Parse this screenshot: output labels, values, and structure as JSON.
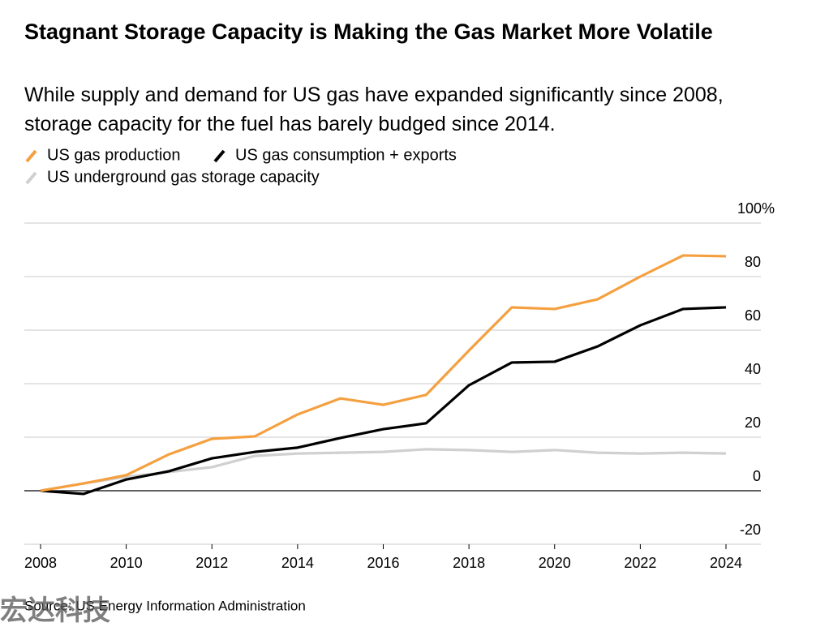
{
  "chart_data": {
    "type": "line",
    "title": "Stagnant Storage Capacity is Making the Gas Market More Volatile",
    "subtitle": "While supply and demand for US gas have expanded significantly since 2008, storage capacity for the fuel has barely budged since 2014.",
    "x": [
      2008,
      2009,
      2010,
      2011,
      2012,
      2013,
      2014,
      2015,
      2016,
      2017,
      2018,
      2019,
      2020,
      2021,
      2022,
      2023,
      2024
    ],
    "series": [
      {
        "name": "US gas production",
        "color": "#f5a040",
        "values": [
          0,
          2.7,
          5.8,
          13.6,
          19.4,
          20.3,
          28.5,
          34.5,
          32.1,
          35.8,
          52.4,
          68.5,
          67.9,
          71.5,
          80,
          87.9,
          87.6
        ]
      },
      {
        "name": "US gas consumption + exports",
        "color": "#000000",
        "values": [
          0,
          -1.2,
          4.2,
          7.3,
          12.1,
          14.5,
          16.1,
          19.7,
          23,
          25.2,
          39.4,
          47.9,
          48.2,
          53.9,
          61.8,
          67.9,
          68.5
        ]
      },
      {
        "name": "US underground gas storage capacity",
        "color": "#d0d0d0",
        "values": [
          0,
          2.7,
          5.2,
          7,
          8.8,
          13,
          13.9,
          14.2,
          14.5,
          15.5,
          15.2,
          14.5,
          15.2,
          14.2,
          13.9,
          14.2,
          13.9
        ]
      }
    ],
    "xlim": [
      2008,
      2024
    ],
    "xticks": [
      2008,
      2010,
      2012,
      2014,
      2016,
      2018,
      2020,
      2022,
      2024
    ],
    "ylim": [
      -20,
      100
    ],
    "yticks": [
      -20,
      0,
      20,
      40,
      60,
      80,
      {
        "value": 100,
        "label": "100%"
      }
    ],
    "grid": true,
    "source": "Source: US Energy Information Administration"
  },
  "watermark": "宏达科技"
}
